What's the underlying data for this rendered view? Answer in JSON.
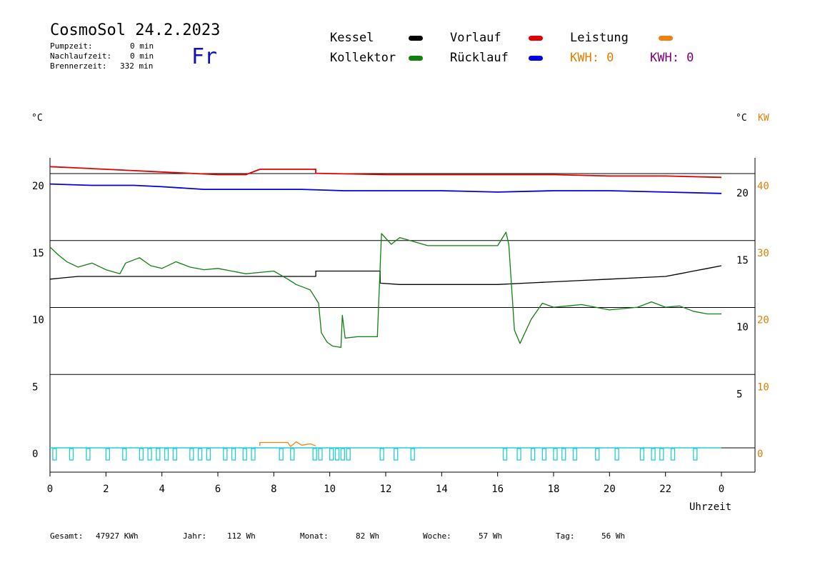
{
  "header": {
    "title": "CosmoSol 24.2.2023",
    "day": "Fr",
    "stats": [
      {
        "label": "Pumpzeit:",
        "value": "0 min"
      },
      {
        "label": "Nachlaufzeit:",
        "value": "0 min"
      },
      {
        "label": "Brennerzeit:",
        "value": "332 min"
      }
    ]
  },
  "legend": {
    "kessel": {
      "label": "Kessel",
      "color": "#000000"
    },
    "vorlauf": {
      "label": "Vorlauf",
      "color": "#e00000"
    },
    "leistung": {
      "label": "Leistung",
      "color": "#f08010"
    },
    "kollektor": {
      "label": "Kollektor",
      "color": "#108010"
    },
    "ruecklauf": {
      "label": "Rücklauf",
      "color": "#0000e0"
    },
    "kwh_orange": {
      "label": "KWH: 0",
      "color": "#e08000"
    },
    "kwh_purple": {
      "label": "KWH: 0",
      "color": "#800080"
    }
  },
  "axes": {
    "left_unit": "°C",
    "right_unit_c": "°C",
    "right_unit_kw": "KW",
    "xlabel": "Uhrzeit"
  },
  "footer": [
    {
      "label": "Gesamt:",
      "value": "47927 KWh"
    },
    {
      "label": "Jahr:",
      "value": "112 Wh"
    },
    {
      "label": "Monat:",
      "value": "82 Wh"
    },
    {
      "label": "Woche:",
      "value": "57 Wh"
    },
    {
      "label": "Tag:",
      "value": "56 Wh"
    }
  ],
  "chart_data": {
    "type": "line",
    "title": "CosmoSol 24.2.2023",
    "xlabel": "Uhrzeit",
    "ylabel": "°C",
    "xlim": [
      0,
      24
    ],
    "ylim": [
      -1.5,
      22
    ],
    "x_ticks": [
      "0",
      "2",
      "4",
      "6",
      "8",
      "10",
      "12",
      "14",
      "16",
      "18",
      "20",
      "22",
      "0"
    ],
    "y_ticks_left": [
      "0",
      "5",
      "10",
      "15",
      "20"
    ],
    "y_ticks_right_c": [
      "5",
      "10",
      "15",
      "20"
    ],
    "y_ticks_right_kw": [
      "0",
      "10",
      "20",
      "30",
      "40"
    ],
    "grid": "horizontal",
    "series": [
      {
        "name": "Vorlauf",
        "color": "#e00000",
        "points": [
          [
            0,
            21
          ],
          [
            1,
            20.9
          ],
          [
            2,
            20.8
          ],
          [
            3,
            20.7
          ],
          [
            4,
            20.6
          ],
          [
            5,
            20.5
          ],
          [
            6,
            20.4
          ],
          [
            7,
            20.4
          ],
          [
            7.5,
            20.8
          ],
          [
            9.5,
            20.8
          ],
          [
            9.5,
            20.5
          ],
          [
            12,
            20.4
          ],
          [
            14,
            20.4
          ],
          [
            16,
            20.4
          ],
          [
            18,
            20.4
          ],
          [
            20,
            20.3
          ],
          [
            22,
            20.3
          ],
          [
            24,
            20.2
          ]
        ]
      },
      {
        "name": "Rücklauf",
        "color": "#0000e0",
        "points": [
          [
            0,
            19.7
          ],
          [
            1.5,
            19.6
          ],
          [
            3,
            19.6
          ],
          [
            4,
            19.5
          ],
          [
            5.5,
            19.3
          ],
          [
            7,
            19.3
          ],
          [
            9,
            19.3
          ],
          [
            10.5,
            19.2
          ],
          [
            12,
            19.2
          ],
          [
            14,
            19.2
          ],
          [
            16,
            19.1
          ],
          [
            18,
            19.2
          ],
          [
            20,
            19.2
          ],
          [
            22,
            19.1
          ],
          [
            24,
            19.0
          ]
        ]
      },
      {
        "name": "Kessel",
        "color": "#000000",
        "points": [
          [
            0,
            12.6
          ],
          [
            0.5,
            12.7
          ],
          [
            1,
            12.8
          ],
          [
            2,
            12.8
          ],
          [
            4,
            12.8
          ],
          [
            6,
            12.8
          ],
          [
            8,
            12.8
          ],
          [
            9.5,
            12.8
          ],
          [
            9.5,
            13.2
          ],
          [
            11.8,
            13.2
          ],
          [
            11.8,
            12.3
          ],
          [
            12.5,
            12.2
          ],
          [
            14,
            12.2
          ],
          [
            16,
            12.2
          ],
          [
            17,
            12.3
          ],
          [
            18,
            12.4
          ],
          [
            19,
            12.5
          ],
          [
            20,
            12.6
          ],
          [
            21,
            12.7
          ],
          [
            22,
            12.8
          ],
          [
            22.5,
            13.0
          ],
          [
            23,
            13.2
          ],
          [
            23.5,
            13.4
          ],
          [
            24,
            13.6
          ]
        ]
      },
      {
        "name": "Kollektor",
        "color": "#108010",
        "points": [
          [
            0,
            15
          ],
          [
            0.3,
            14.4
          ],
          [
            0.6,
            13.9
          ],
          [
            1,
            13.5
          ],
          [
            1.5,
            13.8
          ],
          [
            2,
            13.3
          ],
          [
            2.5,
            13.0
          ],
          [
            2.7,
            13.8
          ],
          [
            3.2,
            14.2
          ],
          [
            3.6,
            13.6
          ],
          [
            4,
            13.4
          ],
          [
            4.5,
            13.9
          ],
          [
            5,
            13.5
          ],
          [
            5.5,
            13.3
          ],
          [
            6,
            13.4
          ],
          [
            6.5,
            13.2
          ],
          [
            7,
            13.0
          ],
          [
            7.5,
            13.1
          ],
          [
            8,
            13.2
          ],
          [
            8.5,
            12.6
          ],
          [
            8.8,
            12.2
          ],
          [
            9.3,
            11.8
          ],
          [
            9.6,
            10.8
          ],
          [
            9.7,
            8.6
          ],
          [
            9.9,
            7.9
          ],
          [
            10.1,
            7.6
          ],
          [
            10.4,
            7.5
          ],
          [
            10.45,
            9.9
          ],
          [
            10.55,
            8.2
          ],
          [
            11,
            8.3
          ],
          [
            11.7,
            8.3
          ],
          [
            11.85,
            16.0
          ],
          [
            12.2,
            15.2
          ],
          [
            12.5,
            15.7
          ],
          [
            13,
            15.4
          ],
          [
            13.5,
            15.1
          ],
          [
            14,
            15.1
          ],
          [
            15,
            15.1
          ],
          [
            16,
            15.1
          ],
          [
            16.3,
            16.1
          ],
          [
            16.4,
            15.2
          ],
          [
            16.6,
            8.8
          ],
          [
            16.8,
            7.8
          ],
          [
            17.2,
            9.6
          ],
          [
            17.6,
            10.8
          ],
          [
            18,
            10.5
          ],
          [
            18.5,
            10.6
          ],
          [
            19,
            10.7
          ],
          [
            19.5,
            10.5
          ],
          [
            20,
            10.3
          ],
          [
            20.5,
            10.4
          ],
          [
            21,
            10.5
          ],
          [
            21.5,
            10.9
          ],
          [
            22,
            10.5
          ],
          [
            22.5,
            10.6
          ],
          [
            23,
            10.2
          ],
          [
            23.5,
            10.0
          ],
          [
            24,
            10.0
          ]
        ]
      },
      {
        "name": "Leistung",
        "color": "#f08010",
        "points": [
          [
            7.5,
            0.15
          ],
          [
            7.5,
            0.4
          ],
          [
            8.5,
            0.4
          ],
          [
            8.6,
            0.1
          ],
          [
            8.8,
            0.45
          ],
          [
            9,
            0.2
          ],
          [
            9.3,
            0.3
          ],
          [
            9.5,
            0.15
          ]
        ]
      }
    ]
  }
}
